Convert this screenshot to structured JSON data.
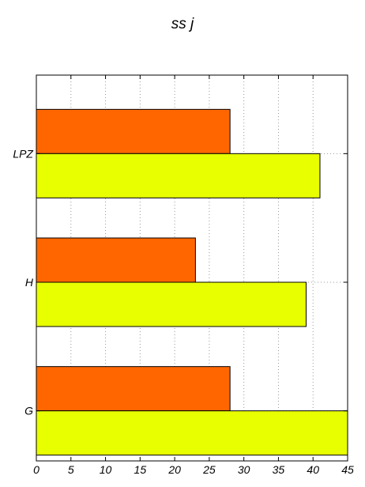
{
  "chart_data": {
    "type": "bar",
    "orientation": "horizontal",
    "title": "ss j",
    "xlabel": "",
    "ylabel": "",
    "categories": [
      "G",
      "H",
      "LPZ"
    ],
    "series": [
      {
        "values": [
          28,
          23,
          28
        ],
        "color": "#ff6600"
      },
      {
        "values": [
          45,
          39,
          41
        ],
        "color": "#e8ff00"
      }
    ],
    "xlim": [
      0,
      45
    ],
    "xticks": [
      0,
      5,
      10,
      15,
      20,
      25,
      30,
      35,
      40,
      45
    ],
    "grid": true,
    "legend": "none"
  }
}
